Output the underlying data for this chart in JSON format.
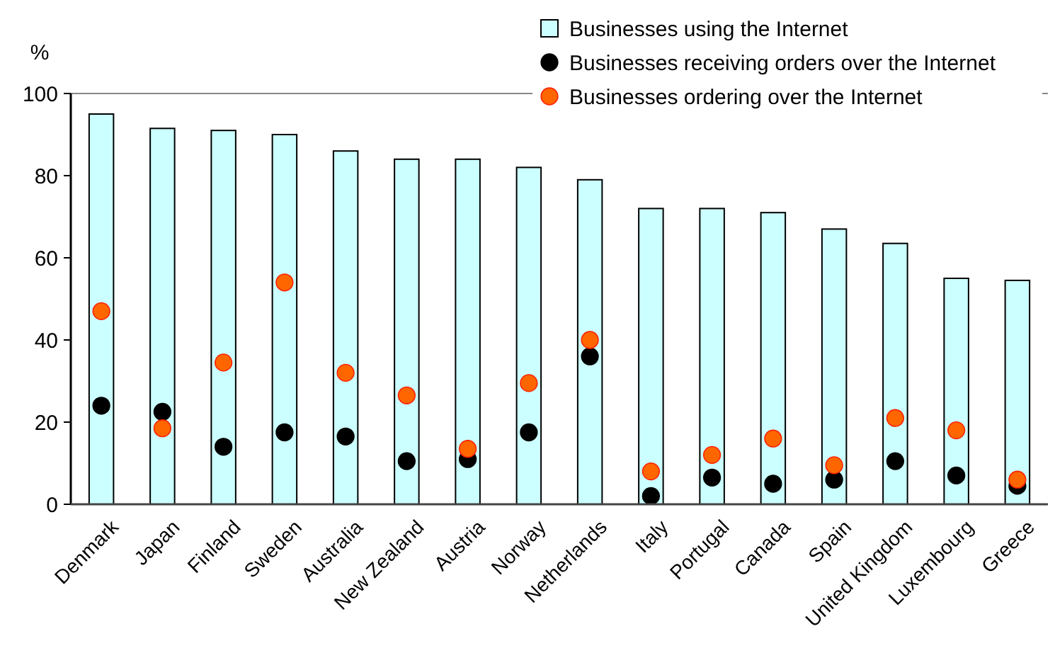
{
  "chart_data": {
    "type": "bar",
    "ylabel": "%",
    "categories": [
      "Denmark",
      "Japan",
      "Finland",
      "Sweden",
      "Australia",
      "New Zealand",
      "Austria",
      "Norway",
      "Netherlands",
      "Italy",
      "Portugal",
      "Canada",
      "Spain",
      "United Kingdom",
      "Luxembourg",
      "Greece"
    ],
    "series": [
      {
        "name": "Businesses using the Internet",
        "color": "#ccffff",
        "values": [
          95,
          91.5,
          91,
          90,
          86,
          84,
          84,
          82,
          79,
          72,
          72,
          71,
          67,
          63.5,
          55,
          54.5
        ]
      },
      {
        "name": "Businesses receiving orders over the Internet",
        "type": "scatter",
        "color": "#000000",
        "values": [
          24,
          22.5,
          14,
          17.5,
          16.5,
          10.5,
          11,
          17.5,
          36,
          2,
          6.5,
          5,
          6,
          10.5,
          7,
          4.5
        ]
      },
      {
        "name": "Businesses ordering over the Internet",
        "type": "scatter",
        "color": "#ff6600",
        "values": [
          47,
          18.5,
          34.5,
          54,
          32,
          26.5,
          13.5,
          29.5,
          40,
          8,
          12,
          16,
          9.5,
          21,
          18,
          6
        ]
      }
    ],
    "ylim": [
      0,
      100
    ],
    "yticks": [
      0,
      20,
      40,
      60,
      80,
      100
    ],
    "grid": false,
    "legend": "top right",
    "marker": "circle"
  }
}
